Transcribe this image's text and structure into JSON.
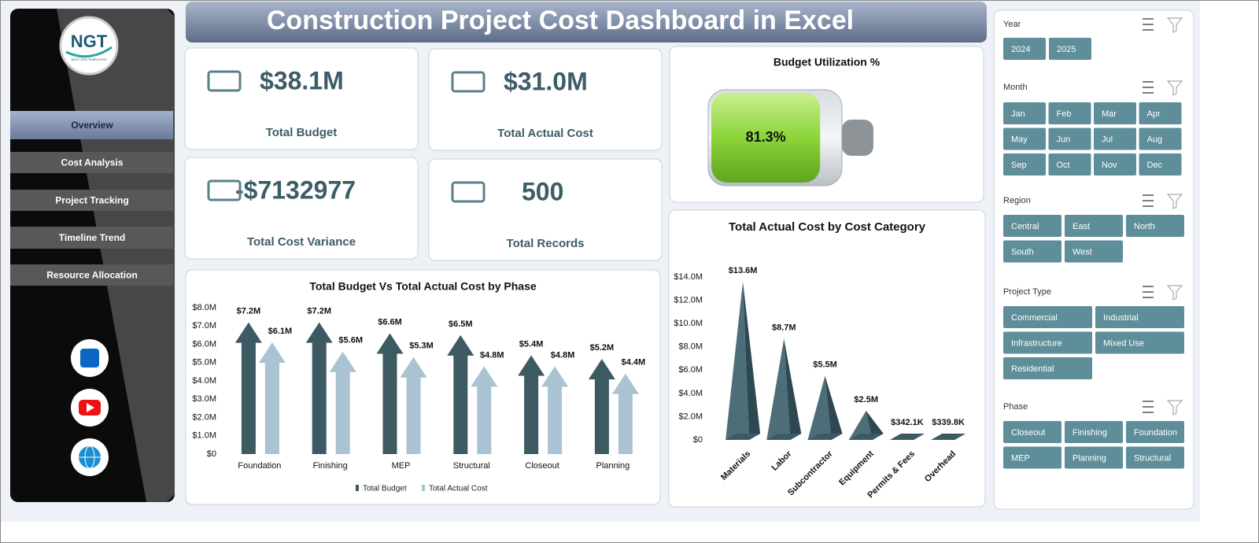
{
  "header": {
    "title": "Construction Project Cost Dashboard in Excel"
  },
  "sidebar": {
    "logo": "NGT",
    "logo_tagline": "NEXT GEN TEMPLATES",
    "nav": [
      "Overview",
      "Cost Analysis",
      "Project Tracking",
      "Timeline Trend",
      "Resource Allocation"
    ]
  },
  "kpis": [
    {
      "value": "$38.1M",
      "label": "Total Budget"
    },
    {
      "value": "$31.0M",
      "label": "Total Actual Cost"
    },
    {
      "value": "-$7132977",
      "label": "Total Cost Variance"
    },
    {
      "value": "500",
      "label": "Total Records"
    }
  ],
  "slicers": [
    {
      "title": "Year",
      "items": [
        "2024",
        "2025"
      ]
    },
    {
      "title": "Month",
      "items": [
        "Jan",
        "Feb",
        "Mar",
        "Apr",
        "May",
        "Jun",
        "Jul",
        "Aug",
        "Sep",
        "Oct",
        "Nov",
        "Dec"
      ]
    },
    {
      "title": "Region",
      "items": [
        "Central",
        "East",
        "North",
        "South",
        "West"
      ]
    },
    {
      "title": "Project Type",
      "items": [
        "Commercial",
        "Industrial",
        "Infrastructure",
        "Mixed Use",
        "Residential"
      ]
    },
    {
      "title": "Phase",
      "items": [
        "Closeout",
        "Finishing",
        "Foundation",
        "MEP",
        "Planning",
        "Structural"
      ]
    }
  ],
  "chart_data": [
    {
      "type": "battery",
      "title": "Budget Utilization %",
      "values": [
        81.3
      ],
      "value_labels": [
        "81.3%"
      ],
      "ylim": [
        0,
        100
      ],
      "color": "#8bd43a"
    },
    {
      "type": "arrow",
      "title": "Total Budget Vs Total Actual Cost by Phase",
      "categories": [
        "Foundation",
        "Finishing",
        "MEP",
        "Structural",
        "Closeout",
        "Planning"
      ],
      "series": [
        {
          "name": "Total Budget",
          "color": "#3d5a63",
          "values": [
            7200000,
            7200000,
            6600000,
            6500000,
            5400000,
            5200000
          ],
          "value_labels": [
            "$7.2M",
            "$7.2M",
            "$6.6M",
            "$6.5M",
            "$5.4M",
            "$5.2M"
          ]
        },
        {
          "name": "Total Actual Cost",
          "color": "#a9c3d2",
          "values": [
            6100000,
            5600000,
            5300000,
            4800000,
            4800000,
            4400000
          ],
          "value_labels": [
            "$6.1M",
            "$5.6M",
            "$5.3M",
            "$4.8M",
            "$4.8M",
            "$4.4M"
          ]
        }
      ],
      "ylim": [
        0,
        8000000
      ],
      "yticks": [
        {
          "value": 0,
          "label": "$0"
        },
        {
          "value": 1000000,
          "label": "$1.0M"
        },
        {
          "value": 2000000,
          "label": "$2.0M"
        },
        {
          "value": 3000000,
          "label": "$3.0M"
        },
        {
          "value": 4000000,
          "label": "$4.0M"
        },
        {
          "value": 5000000,
          "label": "$5.0M"
        },
        {
          "value": 6000000,
          "label": "$6.0M"
        },
        {
          "value": 7000000,
          "label": "$7.0M"
        },
        {
          "value": 8000000,
          "label": "$8.0M"
        }
      ],
      "legend": "bottom"
    },
    {
      "type": "pyramid",
      "title": "Total Actual Cost by Cost Category",
      "categories": [
        "Materials",
        "Labor",
        "Subcontractor",
        "Equipment",
        "Permits & Fees",
        "Overhead"
      ],
      "values": [
        13600000,
        8700000,
        5500000,
        2500000,
        342100,
        339800
      ],
      "value_labels": [
        "$13.6M",
        "$8.7M",
        "$5.5M",
        "$2.5M",
        "$342.1K",
        "$339.8K"
      ],
      "color": "#3d5a63",
      "ylim": [
        0,
        14000000
      ],
      "yticks": [
        {
          "value": 0,
          "label": "$0"
        },
        {
          "value": 2000000,
          "label": "$2.0M"
        },
        {
          "value": 4000000,
          "label": "$4.0M"
        },
        {
          "value": 6000000,
          "label": "$6.0M"
        },
        {
          "value": 8000000,
          "label": "$8.0M"
        },
        {
          "value": 10000000,
          "label": "$10.0M"
        },
        {
          "value": 12000000,
          "label": "$12.0M"
        },
        {
          "value": 14000000,
          "label": "$14.0M"
        }
      ]
    }
  ]
}
